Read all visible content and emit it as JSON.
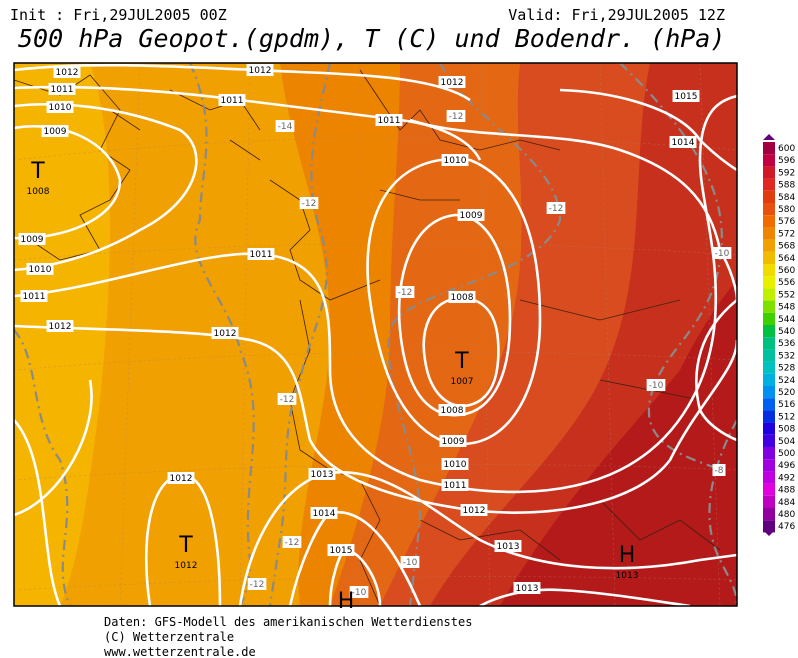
{
  "header": {
    "init": "Init : Fri,29JUL2005 00Z",
    "valid": "Valid: Fri,29JUL2005 12Z",
    "title": "500 hPa Geopot.(gpdm), T (C) und Bodendr. (hPa)"
  },
  "map": {
    "isobar_labels": [
      "1012",
      "1011",
      "1010",
      "1009",
      "1012",
      "1011",
      "1012",
      "1011",
      "1015",
      "1014",
      "1010",
      "1009",
      "1011",
      "1009",
      "1010",
      "1011",
      "1012",
      "1012",
      "1008",
      "1008",
      "1009",
      "1010",
      "1011",
      "1012",
      "1013",
      "1012",
      "1014",
      "1013",
      "1015",
      "1013"
    ],
    "temperature_labels": [
      "-14",
      "-12",
      "-12",
      "-12",
      "-12",
      "-10",
      "-12",
      "-10",
      "-8",
      "-12",
      "-10",
      "-12",
      "-10"
    ],
    "centers": [
      {
        "symbol": "T",
        "value": "1008"
      },
      {
        "symbol": "T",
        "value": "1007"
      },
      {
        "symbol": "T",
        "value": "1012"
      },
      {
        "symbol": "H",
        "value": "1013"
      },
      {
        "symbol": "H"
      }
    ]
  },
  "colorbar": {
    "labels": [
      600,
      596,
      592,
      588,
      584,
      580,
      576,
      572,
      568,
      564,
      560,
      556,
      552,
      548,
      544,
      540,
      536,
      532,
      528,
      524,
      520,
      516,
      512,
      508,
      504,
      500,
      496,
      492,
      488,
      484,
      480,
      476
    ]
  },
  "footer": {
    "lines": [
      "Daten: GFS-Modell des amerikanischen Wetterdienstes",
      "(C) Wetterzentrale",
      "www.wetterzentrale.de"
    ]
  }
}
